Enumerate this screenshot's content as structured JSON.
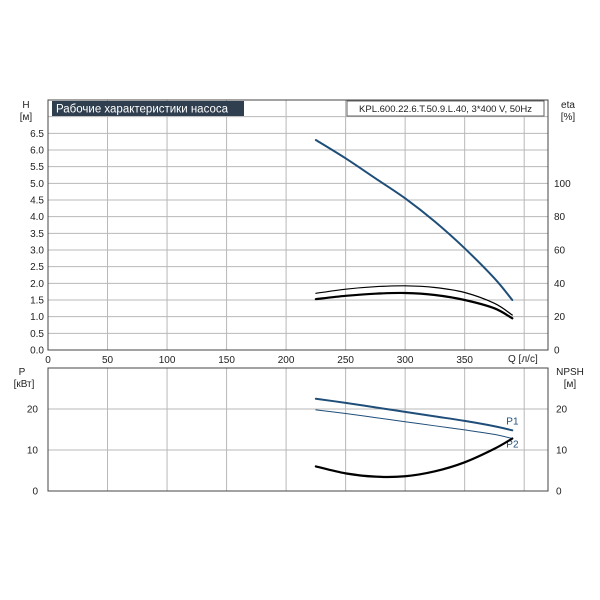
{
  "chart_data": [
    {
      "type": "line",
      "title": "Рабочие характеристики насоса",
      "subtitle": "KPL.600.22.6.T.50.9.L.40, 3*400 V, 50Hz",
      "xlabel": "Q [л/с]",
      "ylabel_left": {
        "name": "H",
        "unit": "[м]"
      },
      "ylabel_right": {
        "name": "eta",
        "unit": "[%]"
      },
      "xlim": [
        0,
        420
      ],
      "ylim_left": [
        0,
        7.5
      ],
      "ylim_right": [
        0,
        150
      ],
      "x_ticks": [
        "0",
        "50",
        "100",
        "150",
        "200",
        "250",
        "300",
        "350"
      ],
      "y_ticks_left": [
        "0.0",
        "0.5",
        "1.0",
        "1.5",
        "2.0",
        "2.5",
        "3.0",
        "3.5",
        "4.0",
        "4.5",
        "5.0",
        "5.5",
        "6.0",
        "6.5"
      ],
      "y_ticks_right": [
        "0",
        "20",
        "40",
        "60",
        "80",
        "100"
      ],
      "grid": true,
      "series": [
        {
          "axis": "left",
          "color": "#1f4e79",
          "stroke": 2,
          "x": [
            225,
            250,
            275,
            300,
            325,
            350,
            375,
            390
          ],
          "y": [
            6.3,
            5.75,
            5.15,
            4.55,
            3.85,
            3.05,
            2.15,
            1.5
          ]
        },
        {
          "axis": "right",
          "color": "#000000",
          "stroke": 1.2,
          "x": [
            225,
            250,
            275,
            300,
            325,
            350,
            375,
            390
          ],
          "y": [
            34,
            36.5,
            38,
            38.5,
            37.5,
            34.5,
            28,
            21
          ]
        },
        {
          "axis": "right",
          "color": "#000000",
          "stroke": 2.2,
          "x": [
            225,
            250,
            275,
            300,
            325,
            350,
            375,
            390
          ],
          "y": [
            30.5,
            32.5,
            33.8,
            34.2,
            33,
            30,
            25,
            19
          ]
        }
      ]
    },
    {
      "type": "line",
      "ylabel_left": {
        "name": "P",
        "unit": "[кВт]"
      },
      "ylabel_right": {
        "name": "NPSH",
        "unit": "[м]"
      },
      "xlim": [
        0,
        420
      ],
      "ylim_left": [
        0,
        30
      ],
      "ylim_right": [
        0,
        30
      ],
      "y_ticks_left": [
        "0",
        "10",
        "20"
      ],
      "y_ticks_right": [
        "0",
        "10",
        "20"
      ],
      "grid": true,
      "series": [
        {
          "name": "P1",
          "axis": "left",
          "color": "#1f4e79",
          "stroke": 2,
          "label": "P1",
          "x": [
            225,
            250,
            275,
            300,
            325,
            350,
            375,
            390
          ],
          "y": [
            22.5,
            21.5,
            20.4,
            19.3,
            18.2,
            17.1,
            15.8,
            14.8
          ]
        },
        {
          "name": "P2",
          "axis": "left",
          "color": "#1f4e79",
          "stroke": 1,
          "label": "P2",
          "x": [
            225,
            250,
            275,
            300,
            325,
            350,
            375,
            390
          ],
          "y": [
            19.8,
            18.9,
            17.9,
            16.9,
            15.9,
            14.9,
            13.8,
            12.8
          ]
        },
        {
          "axis": "right",
          "color": "#000000",
          "stroke": 2.2,
          "x": [
            225,
            250,
            275,
            300,
            325,
            350,
            375,
            390
          ],
          "y": [
            6,
            4.3,
            3.5,
            3.6,
            4.8,
            7,
            10.3,
            12.8
          ]
        }
      ]
    }
  ]
}
